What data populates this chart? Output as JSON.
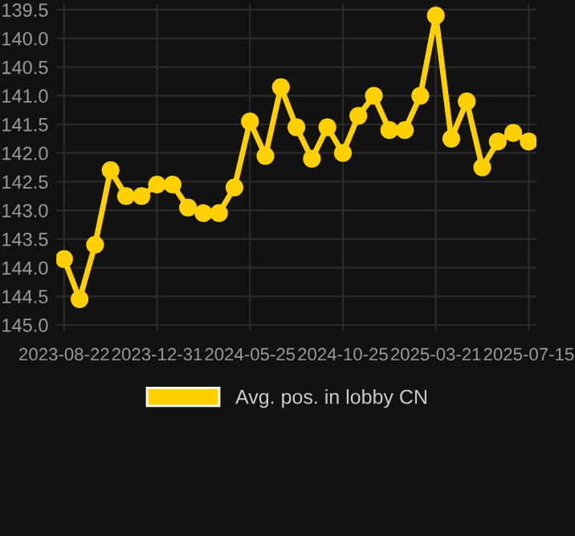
{
  "chart_data": {
    "type": "line",
    "categories": [
      "2023-08-22",
      null,
      null,
      null,
      null,
      null,
      "2023-12-31",
      null,
      null,
      null,
      null,
      null,
      "2024-05-25",
      null,
      null,
      null,
      null,
      null,
      "2024-10-25",
      null,
      null,
      null,
      null,
      null,
      "2025-03-21",
      null,
      null,
      null,
      null,
      null,
      "2025-07-15"
    ],
    "series": [
      {
        "name": "Avg. pos. in lobby CN",
        "color": "#ffd000",
        "values": [
          143.85,
          144.55,
          143.6,
          142.3,
          142.75,
          142.75,
          142.55,
          142.55,
          142.95,
          143.05,
          143.05,
          142.6,
          141.45,
          142.05,
          140.85,
          141.55,
          142.1,
          141.55,
          142.0,
          141.35,
          141.0,
          141.6,
          141.6,
          141.0,
          139.6,
          141.75,
          141.1,
          142.25,
          141.8,
          141.65,
          141.8
        ]
      }
    ],
    "ylim": [
      145.1,
      139.4
    ],
    "yticks": [
      {
        "value": 139.5,
        "label": "139.5"
      },
      {
        "value": 140.0,
        "label": "140.0"
      },
      {
        "value": 140.5,
        "label": "140.5"
      },
      {
        "value": 141.0,
        "label": "141.0"
      },
      {
        "value": 141.5,
        "label": "141.5"
      },
      {
        "value": 142.0,
        "label": "142.0"
      },
      {
        "value": 142.5,
        "label": "142.5"
      },
      {
        "value": 143.0,
        "label": "143.0"
      },
      {
        "value": 143.5,
        "label": "143.5"
      },
      {
        "value": 144.0,
        "label": "144.0"
      },
      {
        "value": 144.5,
        "label": "144.5"
      },
      {
        "value": 145.0,
        "label": "145.0"
      }
    ],
    "grid": true,
    "legend": "bottom",
    "marker": "circle",
    "line_style": "solid"
  }
}
